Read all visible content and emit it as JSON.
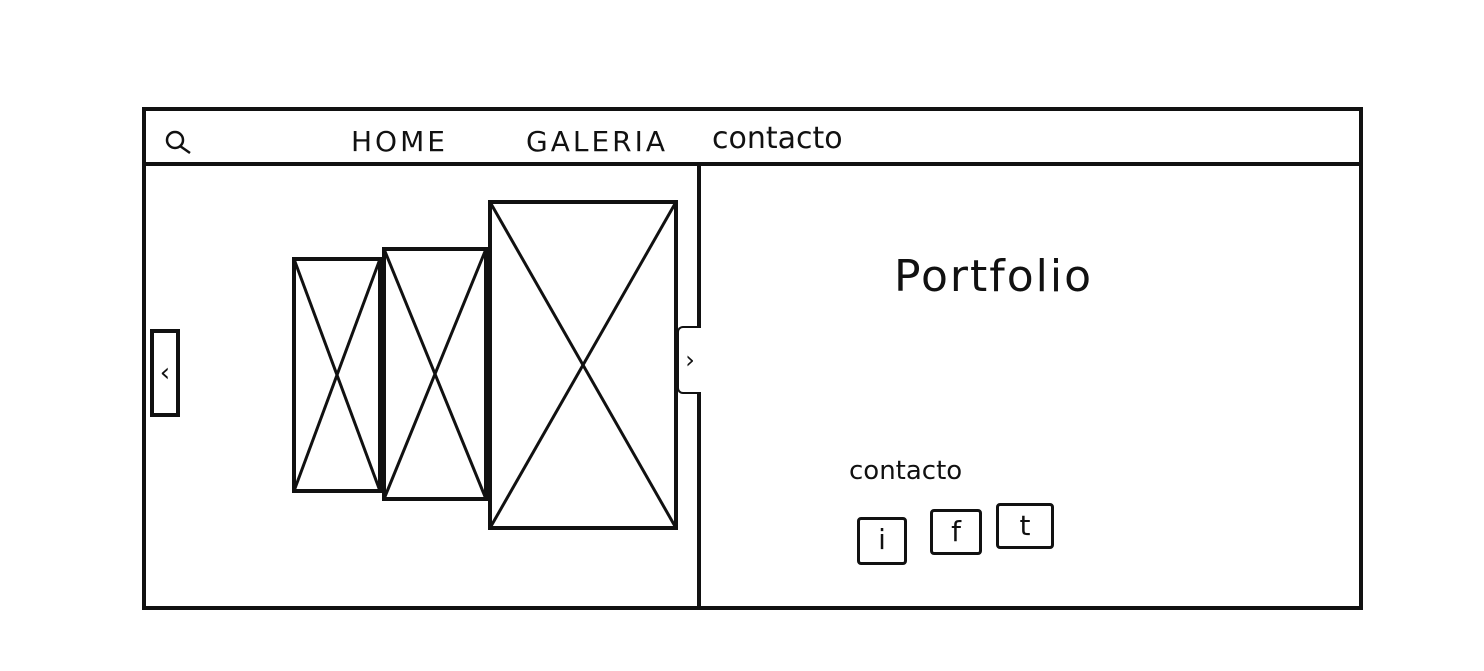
{
  "nav": {
    "search_icon": "search-icon",
    "items": [
      {
        "label": "HOME"
      },
      {
        "label": "GALERIA"
      },
      {
        "label": "contacto"
      }
    ]
  },
  "gallery": {
    "prev_icon": "chevron-left-icon",
    "next_icon": "chevron-right-icon",
    "prev_glyph": "‹",
    "next_glyph": "›",
    "images": [
      "image-placeholder",
      "image-placeholder",
      "image-placeholder"
    ]
  },
  "content": {
    "title": "Portfolio",
    "contact_label": "contacto",
    "social": [
      {
        "label": "i",
        "icon": "instagram-icon"
      },
      {
        "label": "f",
        "icon": "facebook-icon"
      },
      {
        "label": "t",
        "icon": "twitter-icon"
      }
    ]
  }
}
